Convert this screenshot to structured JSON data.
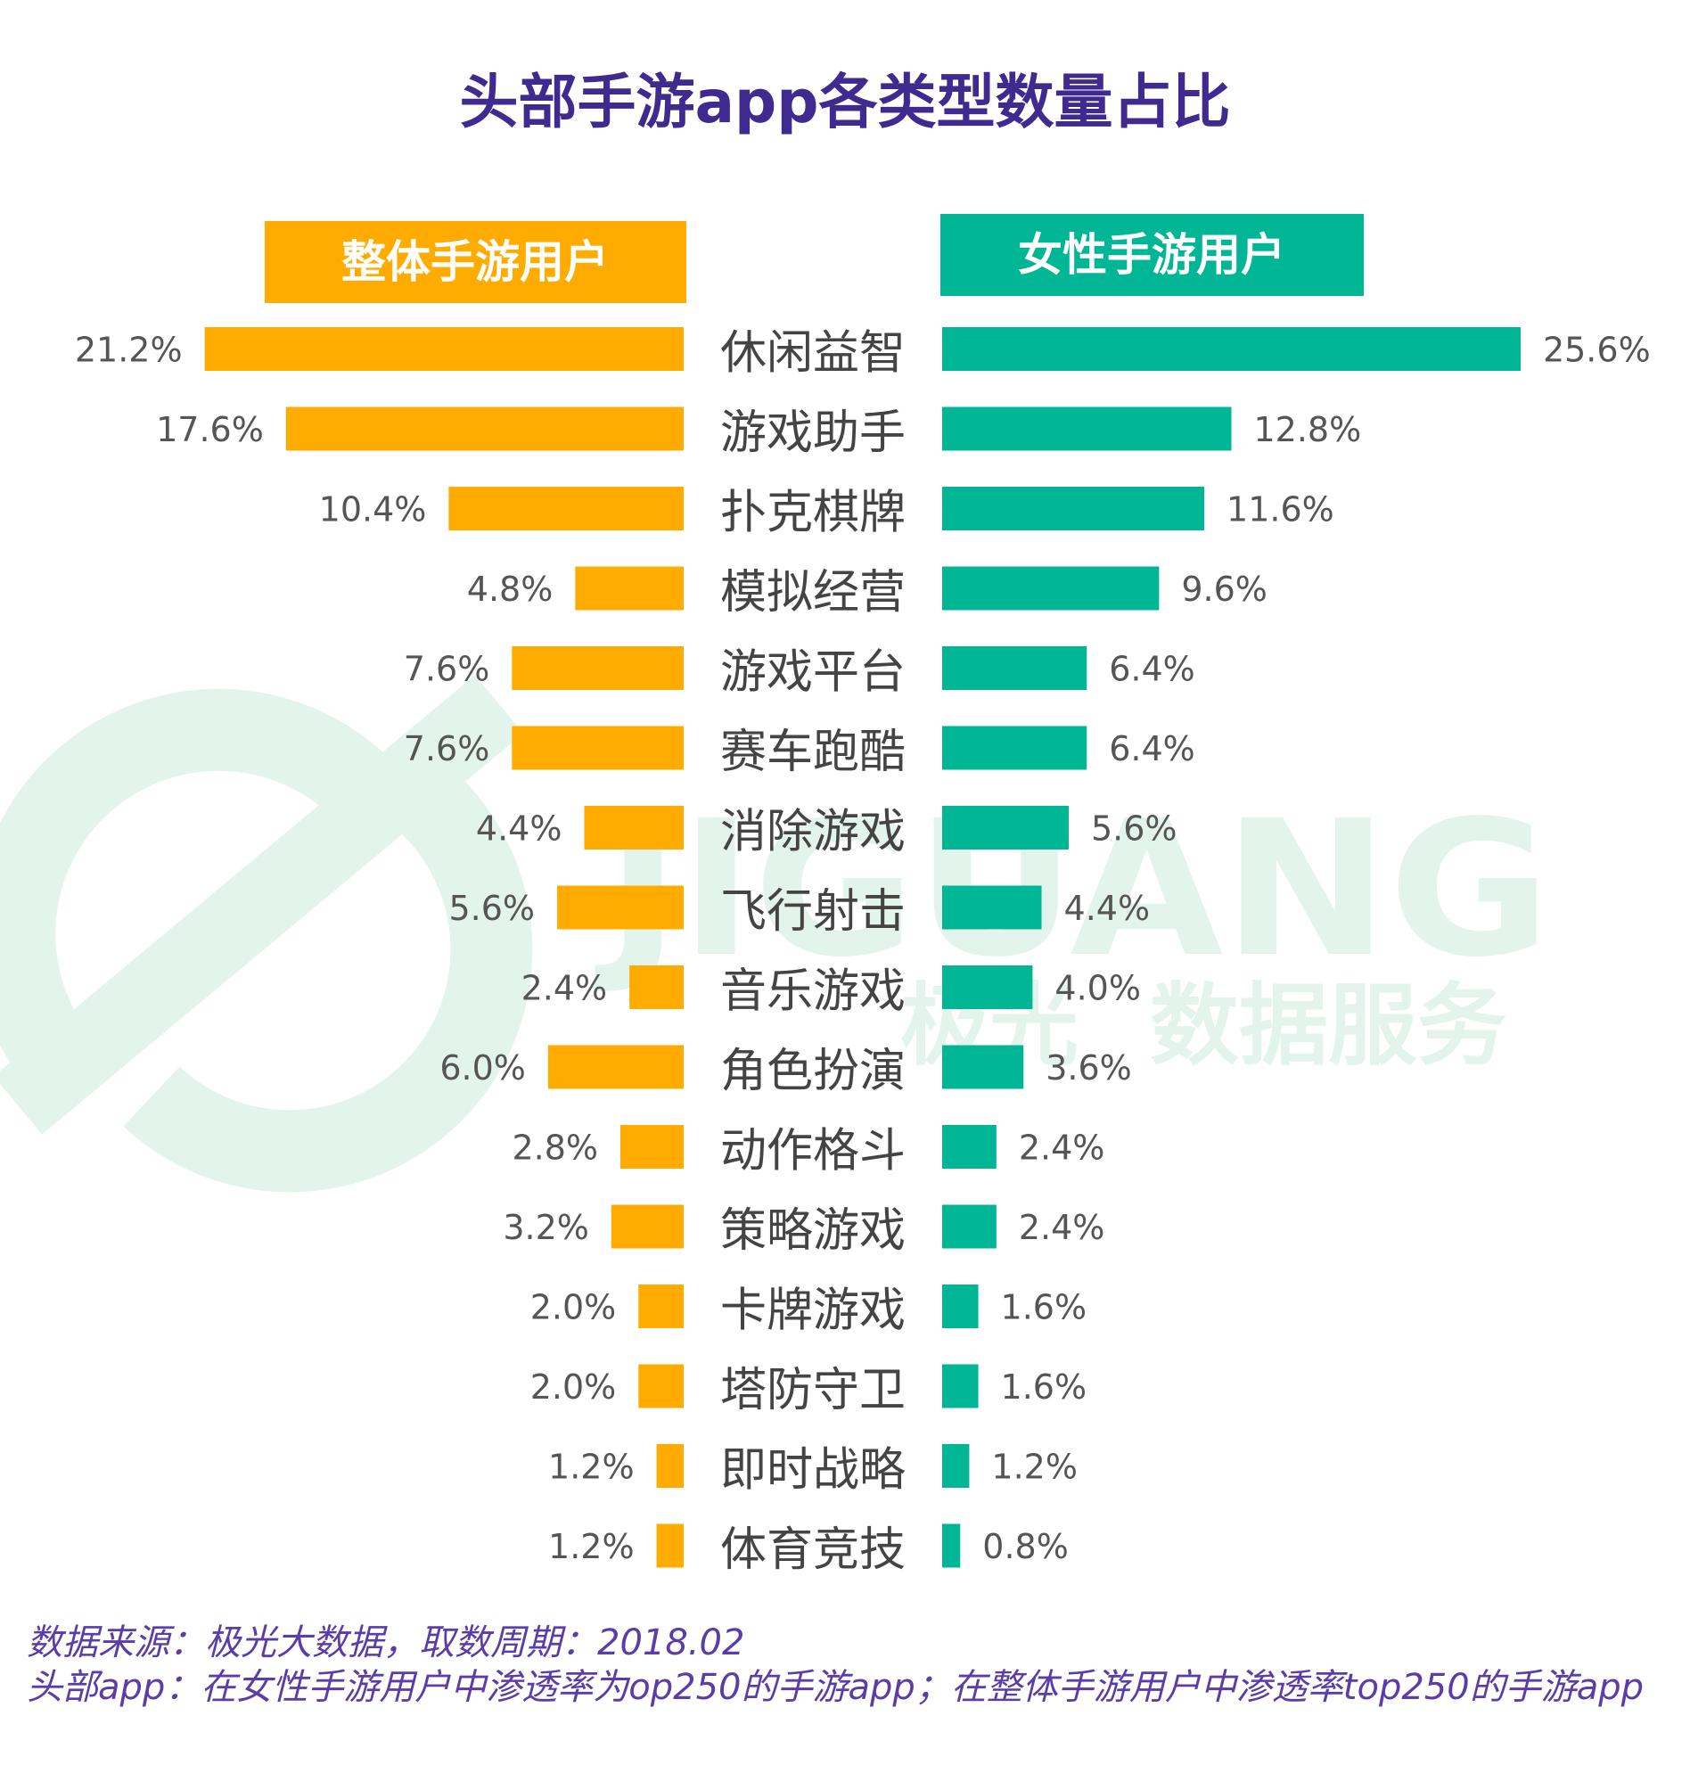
{
  "title": "头部手游app各类型数量占比",
  "watermark": {
    "brand_en": "JIGUANG",
    "brand_cn": "极光",
    "tagline": "数据服务"
  },
  "footer": {
    "source": "数据来源：极光大数据，取数周期：2018.02",
    "note": "头部app：在女性手游用户中渗透率为op250的手游app；在整体手游用户中渗透率top250的手游app"
  },
  "colors": {
    "title": "#3f2a8f",
    "left": "#ffab00",
    "right": "#00b694",
    "category_text": "#444444",
    "value_text": "#555555",
    "watermark": "#e3f4ec",
    "footer": "#5b3da8"
  },
  "chart_data": {
    "type": "bar",
    "orientation": "horizontal-butterfly",
    "title": "头部手游app各类型数量占比",
    "categories": [
      "休闲益智",
      "游戏助手",
      "扑克棋牌",
      "模拟经营",
      "游戏平台",
      "赛车跑酷",
      "消除游戏",
      "飞行射击",
      "音乐游戏",
      "角色扮演",
      "动作格斗",
      "策略游戏",
      "卡牌游戏",
      "塔防守卫",
      "即时战略",
      "体育竞技"
    ],
    "unit": "%",
    "series": [
      {
        "name": "整体手游用户",
        "side": "left",
        "values": [
          21.2,
          17.6,
          10.4,
          4.8,
          7.6,
          7.6,
          4.4,
          5.6,
          2.4,
          6.0,
          2.8,
          3.2,
          2.0,
          2.0,
          1.2,
          1.2
        ],
        "labels": [
          "21.2%",
          "17.6%",
          "10.4%",
          "4.8%",
          "7.6%",
          "7.6%",
          "4.4%",
          "5.6%",
          "2.4%",
          "6.0%",
          "2.8%",
          "3.2%",
          "2.0%",
          "2.0%",
          "1.2%",
          "1.2%"
        ]
      },
      {
        "name": "女性手游用户",
        "side": "right",
        "values": [
          25.6,
          12.8,
          11.6,
          9.6,
          6.4,
          6.4,
          5.6,
          4.4,
          4.0,
          3.6,
          2.4,
          2.4,
          1.6,
          1.6,
          1.2,
          0.8
        ],
        "labels": [
          "25.6%",
          "12.8%",
          "11.6%",
          "9.6%",
          "6.4%",
          "6.4%",
          "5.6%",
          "4.4%",
          "4.0%",
          "3.6%",
          "2.4%",
          "2.4%",
          "1.6%",
          "1.6%",
          "1.2%",
          "0.8%"
        ]
      }
    ]
  }
}
